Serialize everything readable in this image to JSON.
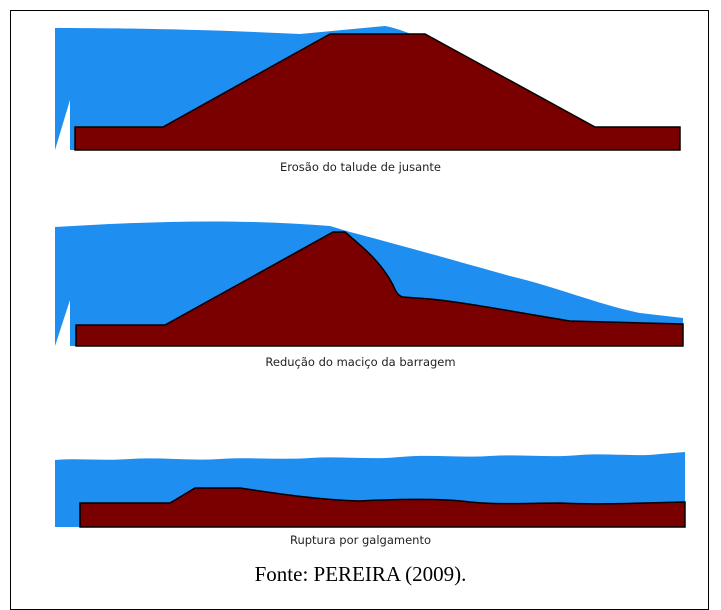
{
  "figure": {
    "captions": [
      "Erosão do talude de jusante",
      "Redução do maciço da barragem",
      "Ruptura por galgamento"
    ],
    "source": "Fonte: PEREIRA (2009)."
  },
  "colors": {
    "water": "#1E8EF0",
    "dam": "#7A0000",
    "outline": "#000000",
    "frame": "#000000"
  }
}
